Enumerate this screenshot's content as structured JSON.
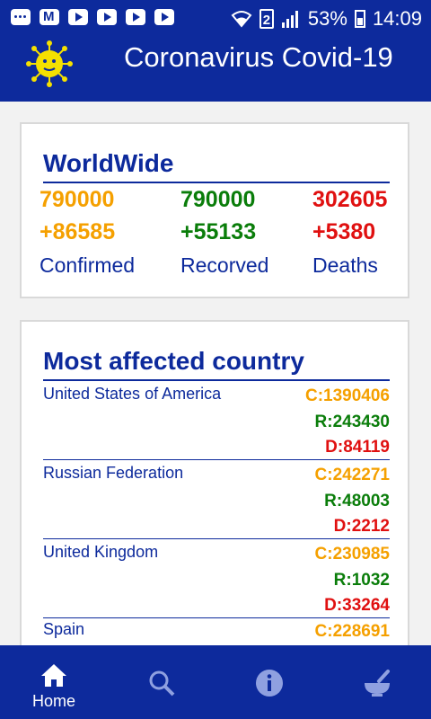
{
  "status_bar": {
    "battery": "53%",
    "time": "14:09",
    "sim_slot": "2"
  },
  "app_bar": {
    "title": "Coronavirus Covid-19"
  },
  "worldwide": {
    "title": "WorldWide",
    "confirmed": {
      "total": "790000",
      "delta": "+86585",
      "label": "Confirmed"
    },
    "recovered": {
      "total": "790000",
      "delta": "+55133",
      "label": "Recorved"
    },
    "deaths": {
      "total": "302605",
      "delta": "+5380",
      "label": "Deaths"
    }
  },
  "most_affected": {
    "title": "Most affected country",
    "countries": [
      {
        "name": "United States of America",
        "confirmed": "C:1390406",
        "recovered": "R:243430",
        "deaths": "D:84119"
      },
      {
        "name": "Russian Federation",
        "confirmed": "C:242271",
        "recovered": "R:48003",
        "deaths": "D:2212"
      },
      {
        "name": "United Kingdom",
        "confirmed": "C:230985",
        "recovered": "R:1032",
        "deaths": "D:33264"
      },
      {
        "name": "Spain",
        "confirmed": "C:228691"
      }
    ]
  },
  "bottom_nav": {
    "items": [
      {
        "label": "Home",
        "icon": "home-icon"
      },
      {
        "label": "",
        "icon": "search-icon"
      },
      {
        "label": "",
        "icon": "info-icon"
      },
      {
        "label": "",
        "icon": "mortar-pestle-icon"
      }
    ]
  },
  "colors": {
    "primary": "#0d2a9c",
    "confirmed": "#f5a000",
    "recovered": "#0a7d0a",
    "deaths": "#e01010"
  }
}
